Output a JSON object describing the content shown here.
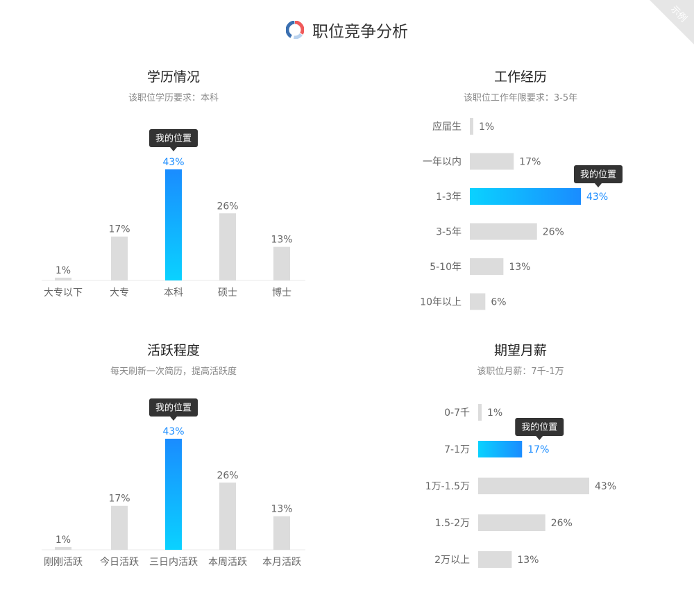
{
  "page": {
    "title": "职位竞争分析",
    "badge": "示例"
  },
  "colors": {
    "accent": "#1a8cff",
    "accent_light": "#0ad2ff",
    "bar_gray": "#dcdcdc",
    "tooltip_bg": "#333333",
    "text_muted": "#888888"
  },
  "tooltip_label": "我的位置",
  "chart_data": [
    {
      "type": "bar",
      "title": "学历情况",
      "subtitle": "该职位学历要求：本科",
      "categories": [
        "大专以下",
        "大专",
        "本科",
        "硕士",
        "博士"
      ],
      "values": [
        1,
        17,
        43,
        26,
        13
      ],
      "value_labels": [
        "1%",
        "17%",
        "43%",
        "26%",
        "13%"
      ],
      "highlight_index": 2
    },
    {
      "type": "bar",
      "orientation": "horizontal",
      "title": "工作经历",
      "subtitle": "该职位工作年限要求：3-5年",
      "categories": [
        "应届生",
        "一年以内",
        "1-3年",
        "3-5年",
        "5-10年",
        "10年以上"
      ],
      "values": [
        1,
        17,
        43,
        26,
        13,
        6
      ],
      "value_labels": [
        "1%",
        "17%",
        "43%",
        "26%",
        "13%",
        "6%"
      ],
      "highlight_index": 2
    },
    {
      "type": "bar",
      "title": "活跃程度",
      "subtitle": "每天刷新一次简历，提高活跃度",
      "categories": [
        "刚刚活跃",
        "今日活跃",
        "三日内活跃",
        "本周活跃",
        "本月活跃"
      ],
      "values": [
        1,
        17,
        43,
        26,
        13
      ],
      "value_labels": [
        "1%",
        "17%",
        "43%",
        "26%",
        "13%"
      ],
      "highlight_index": 2
    },
    {
      "type": "bar",
      "orientation": "horizontal",
      "title": "期望月薪",
      "subtitle": "该职位月薪：7千-1万",
      "categories": [
        "0-7千",
        "7-1万",
        "1万-1.5万",
        "1.5-2万",
        "2万以上"
      ],
      "values": [
        1,
        17,
        43,
        26,
        13
      ],
      "value_labels": [
        "1%",
        "17%",
        "43%",
        "26%",
        "13%"
      ],
      "highlight_index": 1
    }
  ]
}
